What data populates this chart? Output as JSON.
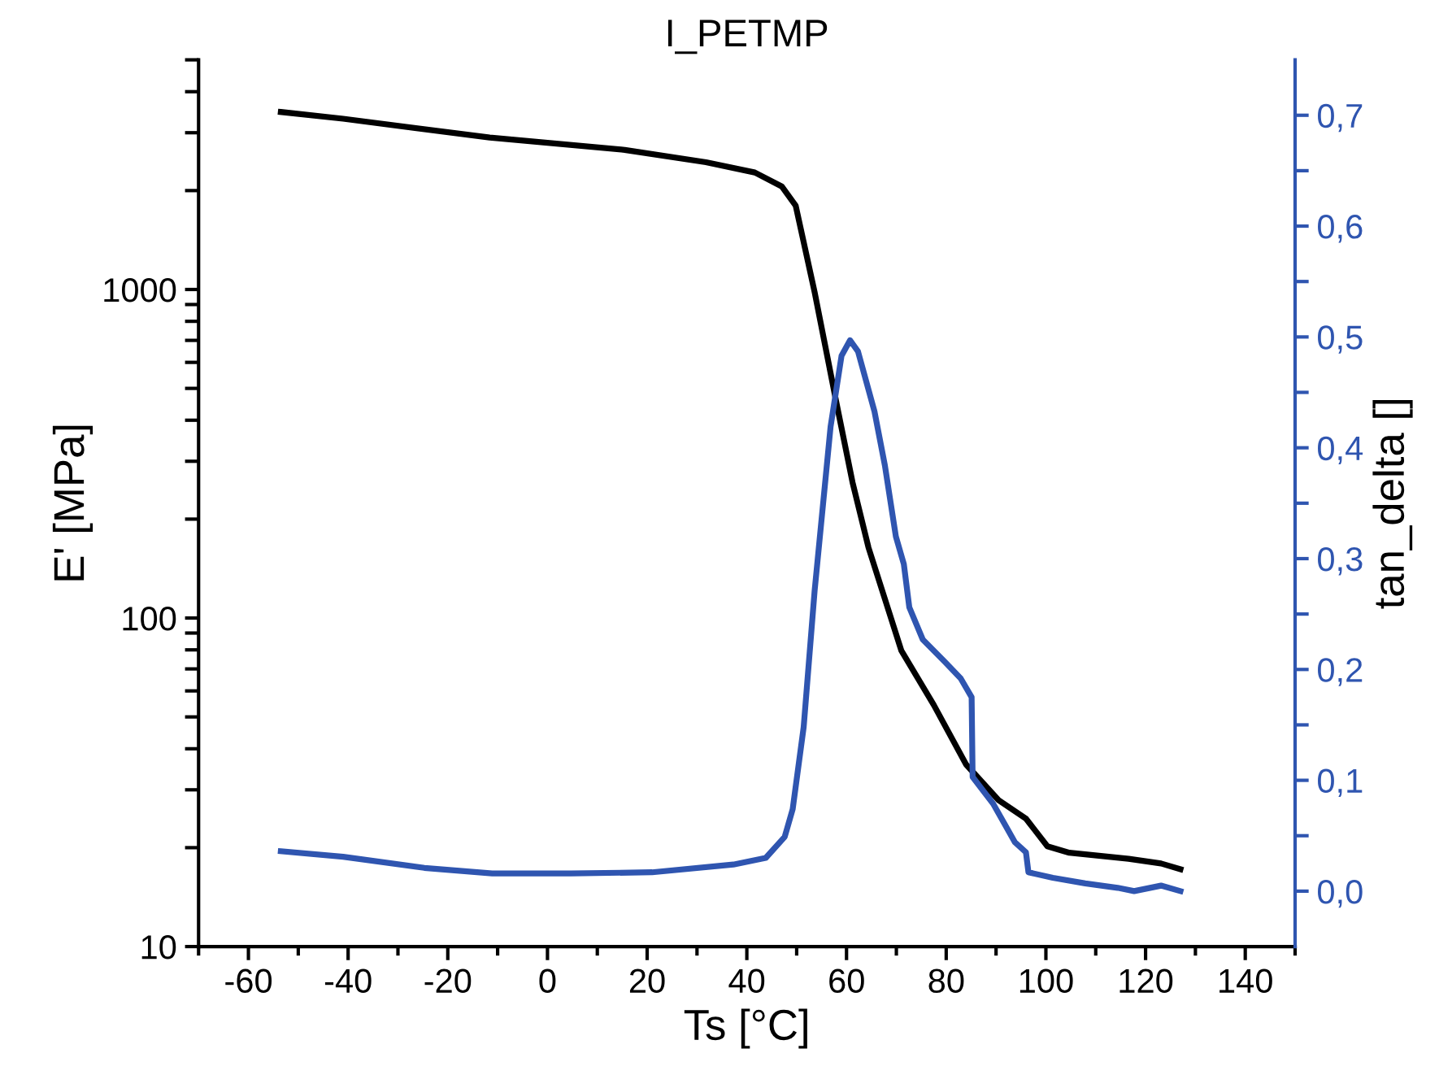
{
  "chart_data": {
    "type": "line",
    "title": "I_PETMP",
    "xlabel": "Ts [°C]",
    "ylabel": "E' [MPa]",
    "y2label": "tan_delta []",
    "log": "y",
    "grid": false,
    "legend": false,
    "marker": "none",
    "line_style": "solid",
    "xlim": [
      -70,
      150
    ],
    "xticks": [
      {
        "value": -70,
        "label": null
      },
      -60,
      {
        "value": -50,
        "label": null
      },
      -40,
      {
        "value": -30,
        "label": null
      },
      -20,
      {
        "value": -10,
        "label": null
      },
      0,
      {
        "value": 10,
        "label": null
      },
      20,
      {
        "value": 30,
        "label": null
      },
      40,
      {
        "value": 50,
        "label": null
      },
      60,
      {
        "value": 70,
        "label": null
      },
      80,
      {
        "value": 90,
        "label": null
      },
      100,
      {
        "value": 110,
        "label": null
      },
      120,
      {
        "value": 130,
        "label": null
      },
      140,
      {
        "value": 150,
        "label": null
      }
    ],
    "ylim": [
      10,
      5000
    ],
    "yticks": [
      10,
      100,
      1000
    ],
    "y2lim": [
      -0.05,
      0.75
    ],
    "y2ticks": [
      {
        "value": 0.0,
        "label": "0,0"
      },
      {
        "value": 0.1,
        "label": "0,1"
      },
      {
        "value": 0.2,
        "label": "0,2"
      },
      {
        "value": 0.3,
        "label": "0,3"
      },
      {
        "value": 0.4,
        "label": "0,4"
      },
      {
        "value": 0.5,
        "label": "0,5"
      },
      {
        "value": 0.6,
        "label": "0,6"
      },
      {
        "value": 0.7,
        "label": "0,7"
      },
      {
        "value": 0.05,
        "label": null
      },
      {
        "value": 0.15,
        "label": null
      },
      {
        "value": 0.25,
        "label": null
      },
      {
        "value": 0.35,
        "label": null
      },
      {
        "value": 0.45,
        "label": null
      },
      {
        "value": 0.55,
        "label": null
      },
      {
        "value": 0.65,
        "label": null
      }
    ],
    "series": [
      {
        "color": "#000000",
        "x": [
          -53.5,
          -41,
          -11.6,
          15.5,
          31.8,
          41.6,
          47,
          49.8,
          53.6,
          57.9,
          61.2,
          64.4,
          71.0,
          77.5,
          84.0,
          90.5,
          96.0,
          100.3,
          104.7,
          116.6,
          123.1,
          127
        ],
        "values": [
          3470,
          3310,
          2900,
          2660,
          2440,
          2270,
          2060,
          1800,
          982,
          458,
          259,
          164,
          79.6,
          54.4,
          35.8,
          27.9,
          24.5,
          20.2,
          19.3,
          18.5,
          17.9,
          17.2
        ]
      },
      {
        "color": "#2f55b0",
        "axis": "y2",
        "x": [
          -53.5,
          -41,
          -24.7,
          -11.1,
          4.7,
          21,
          37.3,
          43.8,
          47.6,
          49.2,
          51.4,
          53.6,
          56.8,
          59.0,
          60.7,
          62.3,
          65.6,
          67.7,
          69.9,
          71.5,
          72.6,
          75.3,
          79.7,
          82.9,
          85.1,
          85.3,
          89.4,
          93.8,
          96.0,
          96.5,
          101.4,
          107.9,
          114.4,
          117.7,
          123.1,
          127
        ],
        "values": [
          0.036,
          0.031,
          0.021,
          0.016,
          0.016,
          0.017,
          0.024,
          0.03,
          0.049,
          0.074,
          0.148,
          0.271,
          0.419,
          0.483,
          0.497,
          0.487,
          0.433,
          0.384,
          0.32,
          0.295,
          0.256,
          0.227,
          0.207,
          0.192,
          0.175,
          0.103,
          0.079,
          0.044,
          0.035,
          0.017,
          0.012,
          0.007,
          0.003,
          0.0,
          0.005,
          0.0
        ]
      }
    ]
  }
}
